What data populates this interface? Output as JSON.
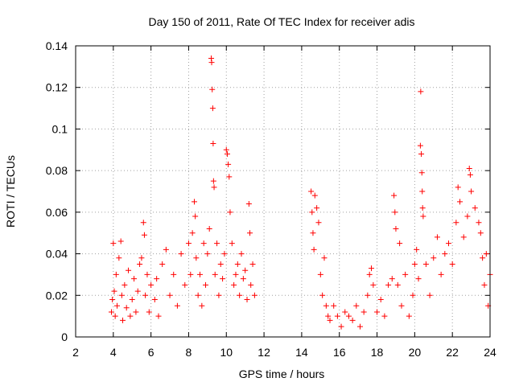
{
  "chart_data": {
    "type": "scatter",
    "title": "Day 150 of 2011, Rate Of TEC Index for receiver adis",
    "xlabel": "GPS time / hours",
    "ylabel": "ROTI / TECUs",
    "xlim": [
      2,
      24
    ],
    "ylim": [
      0,
      0.14
    ],
    "xticks": [
      2,
      4,
      6,
      8,
      10,
      12,
      14,
      16,
      18,
      20,
      22,
      24
    ],
    "xtick_labels": [
      "2",
      "4",
      "6",
      "8",
      "10",
      "12",
      "14",
      "16",
      "18",
      "20",
      "22",
      "24"
    ],
    "yticks": [
      0,
      0.02,
      0.04,
      0.06,
      0.08,
      0.1,
      0.12,
      0.14
    ],
    "ytick_labels": [
      "0",
      "0.02",
      "0.04",
      "0.06",
      "0.08",
      "0.1",
      "0.12",
      "0.14"
    ],
    "grid": true,
    "marker": "+",
    "marker_color": "#ff0000",
    "series": [
      {
        "name": "ROTI",
        "points": [
          [
            3.9,
            0.012
          ],
          [
            3.95,
            0.018
          ],
          [
            4.0,
            0.045
          ],
          [
            4.05,
            0.022
          ],
          [
            4.1,
            0.01
          ],
          [
            4.15,
            0.03
          ],
          [
            4.2,
            0.015
          ],
          [
            4.3,
            0.038
          ],
          [
            4.4,
            0.046
          ],
          [
            4.45,
            0.02
          ],
          [
            4.5,
            0.008
          ],
          [
            4.6,
            0.025
          ],
          [
            4.7,
            0.014
          ],
          [
            4.8,
            0.032
          ],
          [
            4.9,
            0.01
          ],
          [
            5.0,
            0.018
          ],
          [
            5.1,
            0.028
          ],
          [
            5.2,
            0.012
          ],
          [
            5.3,
            0.022
          ],
          [
            5.4,
            0.035
          ],
          [
            5.5,
            0.038
          ],
          [
            5.6,
            0.055
          ],
          [
            5.65,
            0.049
          ],
          [
            5.7,
            0.02
          ],
          [
            5.8,
            0.03
          ],
          [
            5.9,
            0.012
          ],
          [
            6.0,
            0.025
          ],
          [
            6.2,
            0.018
          ],
          [
            6.3,
            0.028
          ],
          [
            6.4,
            0.01
          ],
          [
            6.6,
            0.035
          ],
          [
            6.8,
            0.042
          ],
          [
            7.0,
            0.02
          ],
          [
            7.2,
            0.03
          ],
          [
            7.4,
            0.015
          ],
          [
            7.6,
            0.04
          ],
          [
            7.8,
            0.025
          ],
          [
            8.0,
            0.045
          ],
          [
            8.1,
            0.03
          ],
          [
            8.2,
            0.05
          ],
          [
            8.3,
            0.065
          ],
          [
            8.35,
            0.058
          ],
          [
            8.4,
            0.038
          ],
          [
            8.5,
            0.02
          ],
          [
            8.6,
            0.03
          ],
          [
            8.7,
            0.015
          ],
          [
            8.8,
            0.045
          ],
          [
            8.9,
            0.025
          ],
          [
            9.0,
            0.04
          ],
          [
            9.1,
            0.052
          ],
          [
            9.2,
            0.134
          ],
          [
            9.22,
            0.132
          ],
          [
            9.25,
            0.119
          ],
          [
            9.28,
            0.11
          ],
          [
            9.3,
            0.093
          ],
          [
            9.32,
            0.075
          ],
          [
            9.35,
            0.072
          ],
          [
            9.4,
            0.03
          ],
          [
            9.5,
            0.045
          ],
          [
            9.6,
            0.02
          ],
          [
            9.7,
            0.035
          ],
          [
            9.8,
            0.028
          ],
          [
            9.9,
            0.04
          ],
          [
            10.0,
            0.09
          ],
          [
            10.05,
            0.088
          ],
          [
            10.1,
            0.083
          ],
          [
            10.15,
            0.077
          ],
          [
            10.2,
            0.06
          ],
          [
            10.3,
            0.045
          ],
          [
            10.4,
            0.025
          ],
          [
            10.5,
            0.03
          ],
          [
            10.6,
            0.035
          ],
          [
            10.7,
            0.02
          ],
          [
            10.8,
            0.04
          ],
          [
            10.9,
            0.028
          ],
          [
            11.0,
            0.032
          ],
          [
            11.1,
            0.018
          ],
          [
            11.2,
            0.064
          ],
          [
            11.25,
            0.05
          ],
          [
            11.3,
            0.025
          ],
          [
            11.4,
            0.035
          ],
          [
            11.5,
            0.02
          ],
          [
            14.5,
            0.07
          ],
          [
            14.55,
            0.06
          ],
          [
            14.6,
            0.05
          ],
          [
            14.65,
            0.042
          ],
          [
            14.7,
            0.068
          ],
          [
            14.8,
            0.062
          ],
          [
            14.9,
            0.055
          ],
          [
            15.0,
            0.03
          ],
          [
            15.1,
            0.02
          ],
          [
            15.2,
            0.038
          ],
          [
            15.3,
            0.015
          ],
          [
            15.4,
            0.01
          ],
          [
            15.5,
            0.008
          ],
          [
            15.7,
            0.015
          ],
          [
            15.9,
            0.01
          ],
          [
            16.1,
            0.005
          ],
          [
            16.3,
            0.012
          ],
          [
            16.5,
            0.01
          ],
          [
            16.7,
            0.008
          ],
          [
            16.9,
            0.015
          ],
          [
            17.1,
            0.005
          ],
          [
            17.3,
            0.012
          ],
          [
            17.5,
            0.02
          ],
          [
            17.6,
            0.03
          ],
          [
            17.7,
            0.033
          ],
          [
            17.8,
            0.025
          ],
          [
            18.0,
            0.012
          ],
          [
            18.2,
            0.018
          ],
          [
            18.4,
            0.01
          ],
          [
            18.6,
            0.025
          ],
          [
            18.8,
            0.028
          ],
          [
            18.9,
            0.068
          ],
          [
            18.95,
            0.06
          ],
          [
            19.0,
            0.052
          ],
          [
            19.1,
            0.025
          ],
          [
            19.2,
            0.045
          ],
          [
            19.3,
            0.015
          ],
          [
            19.5,
            0.03
          ],
          [
            19.7,
            0.01
          ],
          [
            19.9,
            0.02
          ],
          [
            20.0,
            0.035
          ],
          [
            20.1,
            0.042
          ],
          [
            20.2,
            0.028
          ],
          [
            20.3,
            0.092
          ],
          [
            20.32,
            0.118
          ],
          [
            20.35,
            0.088
          ],
          [
            20.38,
            0.079
          ],
          [
            20.4,
            0.07
          ],
          [
            20.42,
            0.062
          ],
          [
            20.45,
            0.058
          ],
          [
            20.6,
            0.035
          ],
          [
            20.8,
            0.02
          ],
          [
            21.0,
            0.038
          ],
          [
            21.2,
            0.048
          ],
          [
            21.4,
            0.03
          ],
          [
            21.6,
            0.04
          ],
          [
            21.8,
            0.045
          ],
          [
            22.0,
            0.035
          ],
          [
            22.2,
            0.055
          ],
          [
            22.3,
            0.072
          ],
          [
            22.4,
            0.065
          ],
          [
            22.6,
            0.048
          ],
          [
            22.8,
            0.058
          ],
          [
            22.9,
            0.081
          ],
          [
            22.95,
            0.078
          ],
          [
            23.0,
            0.07
          ],
          [
            23.2,
            0.062
          ],
          [
            23.4,
            0.055
          ],
          [
            23.5,
            0.05
          ],
          [
            23.6,
            0.038
          ],
          [
            23.7,
            0.025
          ],
          [
            23.8,
            0.04
          ],
          [
            23.9,
            0.015
          ],
          [
            24.0,
            0.03
          ]
        ]
      }
    ]
  }
}
